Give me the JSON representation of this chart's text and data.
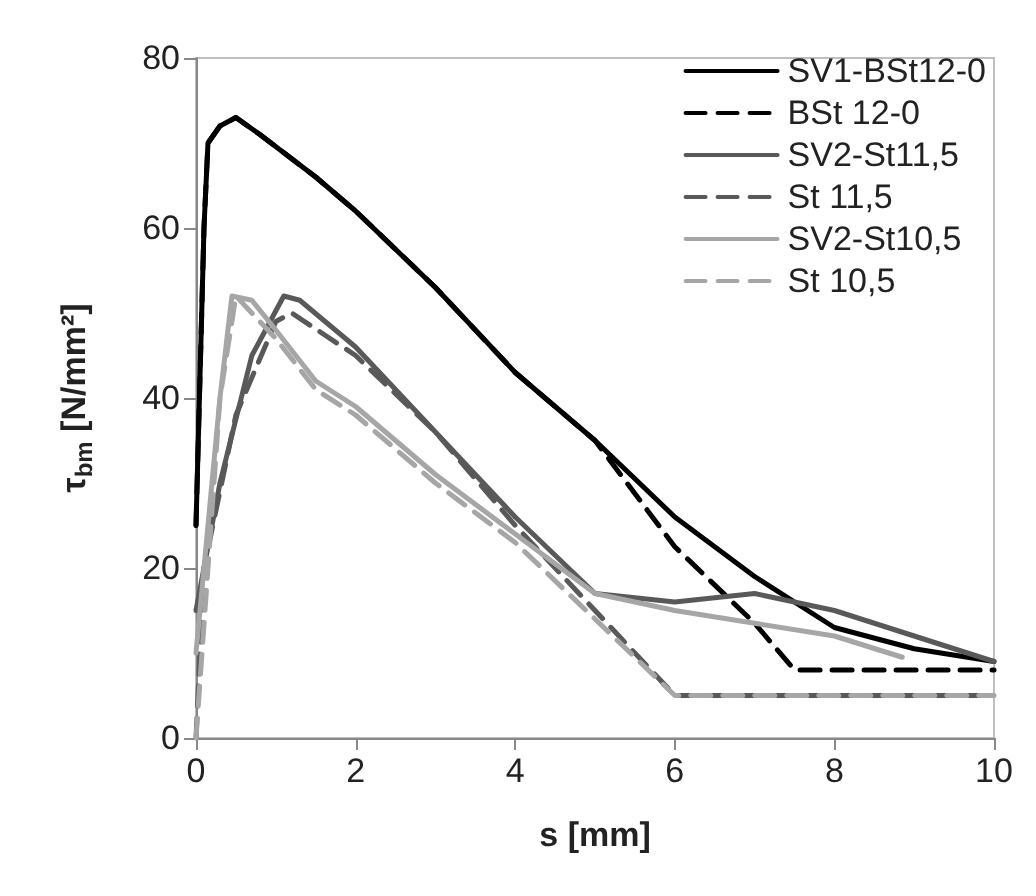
{
  "chart_data": {
    "type": "line",
    "xlabel": "s [mm]",
    "ylabel": "τ$_{bm}$ [N/mm²]",
    "xlim": [
      0,
      10
    ],
    "xticks": [
      0,
      2,
      4,
      6,
      8,
      10
    ],
    "ylim": [
      0,
      80
    ],
    "yticks": [
      0,
      20,
      40,
      60,
      80
    ],
    "grid": false,
    "legend": "top right",
    "marker": "none",
    "series": [
      {
        "name": "SV1-BSt12-0",
        "color": "#000000",
        "line_style": "solid",
        "x": [
          0,
          0.1,
          0.15,
          0.3,
          0.5,
          0.8,
          1.5,
          2,
          3,
          4,
          5,
          6,
          7,
          8,
          9,
          10
        ],
        "values": [
          25,
          60,
          70,
          72,
          73,
          71,
          66,
          62,
          53,
          43,
          35,
          26,
          19,
          13,
          10.5,
          9
        ]
      },
      {
        "name": "BSt 12-0",
        "color": "#000000",
        "line_style": "dashed",
        "x": [
          0,
          0.1,
          0.15,
          0.3,
          0.5,
          0.8,
          1.5,
          2,
          3,
          4,
          5,
          6,
          7,
          7.5,
          10
        ],
        "values": [
          25,
          60,
          70,
          72,
          73,
          71,
          66,
          62,
          53,
          43,
          35,
          22.5,
          13.5,
          8,
          8
        ]
      },
      {
        "name": "SV2-St11,5",
        "color": "#595959",
        "line_style": "solid",
        "x": [
          0,
          0.3,
          0.7,
          1.1,
          1.3,
          2,
          3,
          4,
          5,
          5.5,
          6,
          7,
          8,
          9,
          10
        ],
        "values": [
          15,
          30,
          45,
          52,
          51.5,
          46,
          36,
          26,
          17,
          16.5,
          16,
          17,
          15,
          12,
          9
        ]
      },
      {
        "name": "St 11,5",
        "color": "#595959",
        "line_style": "dashed",
        "x": [
          0,
          0.1,
          0.5,
          1,
          1.2,
          2,
          3,
          4,
          5,
          6,
          10
        ],
        "values": [
          0,
          20,
          38,
          49,
          50,
          45,
          36,
          25,
          15,
          5,
          5
        ]
      },
      {
        "name": "SV2-St10,5",
        "color": "#a6a6a6",
        "line_style": "solid",
        "x": [
          0,
          0.3,
          0.45,
          0.7,
          1,
          1.5,
          2,
          3,
          4,
          5,
          6,
          7,
          8,
          8.85
        ],
        "values": [
          10,
          40,
          52,
          51.5,
          48,
          42,
          39,
          31,
          24,
          17,
          15,
          13.5,
          12,
          9.5
        ]
      },
      {
        "name": "St 10,5",
        "color": "#a6a6a6",
        "line_style": "dashed",
        "x": [
          0,
          0.3,
          0.5,
          1,
          1.5,
          2,
          3,
          4,
          5,
          6,
          10
        ],
        "values": [
          0,
          40,
          52,
          47,
          41,
          38,
          30,
          23,
          14,
          5,
          5
        ]
      }
    ]
  }
}
